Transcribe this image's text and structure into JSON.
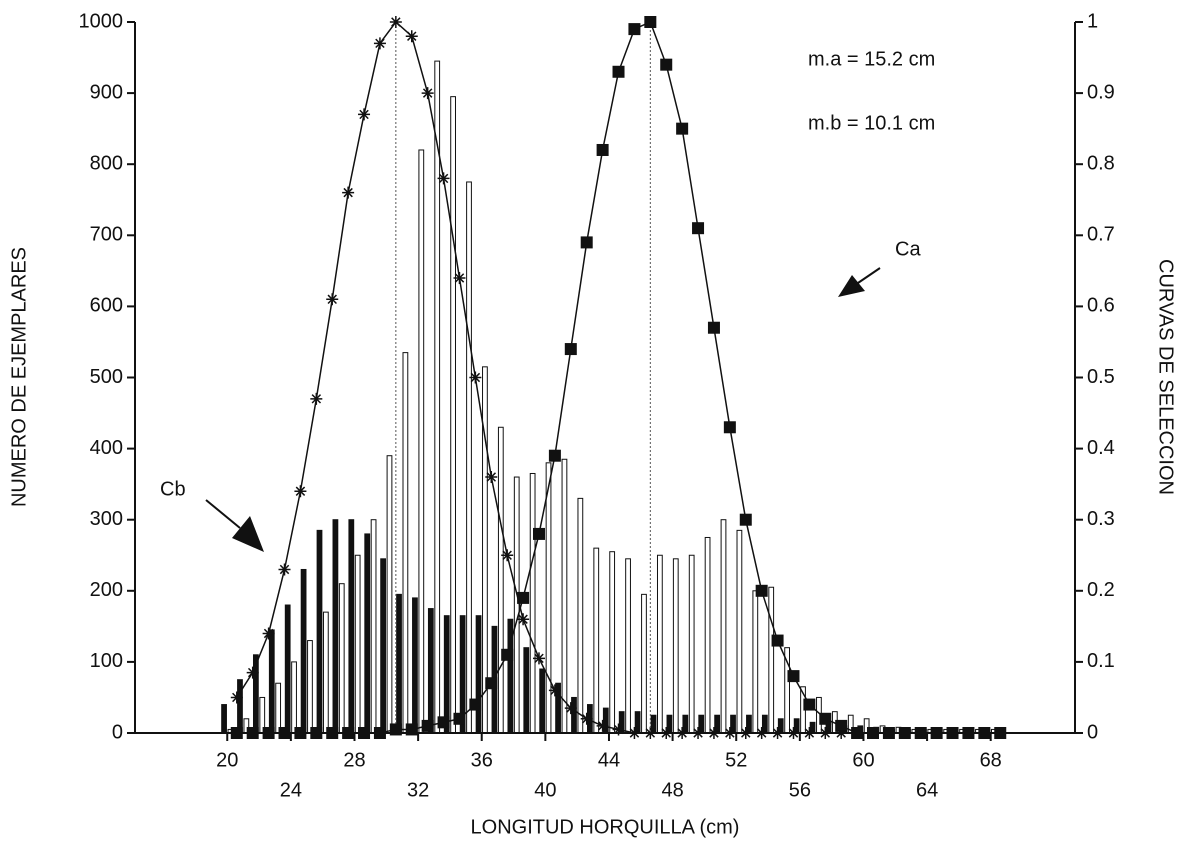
{
  "chart_data": {
    "type": "bar-line",
    "xlabel": "LONGITUD HORQUILLA (cm)",
    "ylabel": "NUMERO DE EJEMPLARES",
    "y2label": "CURVAS DE SELECCION",
    "xlim": [
      14.2,
      73.3
    ],
    "xticks": [
      20,
      24,
      28,
      32,
      36,
      40,
      44,
      48,
      52,
      56,
      60,
      64,
      68
    ],
    "ylim": [
      0,
      1000
    ],
    "yticks": [
      0,
      100,
      200,
      300,
      400,
      500,
      600,
      700,
      800,
      900,
      1000
    ],
    "y2lim": [
      0,
      1
    ],
    "y2ticks": [
      0,
      0.1,
      0.2,
      0.3,
      0.4,
      0.5,
      0.6,
      0.7,
      0.8,
      0.9,
      1
    ],
    "annotations": [
      "m.a = 15.2 cm",
      "m.b = 10.1 cm",
      "Ca",
      "Cb"
    ],
    "series": [
      {
        "type": "bar",
        "color": "#111111",
        "x": [
          20,
          21,
          22,
          23,
          24,
          25,
          26,
          27,
          28,
          29,
          30,
          31,
          32,
          33,
          34,
          35,
          36,
          37,
          38,
          39,
          40,
          41,
          42,
          43,
          44,
          45,
          46,
          47,
          48,
          49,
          50,
          51,
          52,
          53,
          54,
          55,
          56,
          57,
          58,
          59,
          60,
          61,
          62,
          63,
          64,
          65,
          66,
          67,
          68
        ],
        "values": [
          40,
          75,
          110,
          145,
          180,
          230,
          285,
          300,
          300,
          280,
          245,
          195,
          190,
          175,
          165,
          165,
          165,
          150,
          160,
          120,
          90,
          70,
          50,
          40,
          35,
          30,
          30,
          25,
          25,
          25,
          25,
          25,
          25,
          25,
          25,
          20,
          20,
          15,
          15,
          10,
          10,
          8,
          5,
          5,
          5,
          5,
          5,
          5,
          5
        ]
      },
      {
        "type": "bar",
        "color": "#ffffff",
        "x": [
          20,
          21,
          22,
          23,
          24,
          25,
          26,
          27,
          28,
          29,
          30,
          31,
          32,
          33,
          34,
          35,
          36,
          37,
          38,
          39,
          40,
          41,
          42,
          43,
          44,
          45,
          46,
          47,
          48,
          49,
          50,
          51,
          52,
          53,
          54,
          55,
          56,
          57,
          58,
          59,
          60,
          61,
          62,
          63,
          64,
          65,
          66,
          67,
          68
        ],
        "values": [
          5,
          20,
          50,
          70,
          100,
          130,
          170,
          210,
          250,
          300,
          390,
          535,
          820,
          945,
          895,
          775,
          515,
          430,
          360,
          365,
          380,
          385,
          330,
          260,
          255,
          245,
          195,
          250,
          245,
          250,
          275,
          300,
          285,
          200,
          205,
          120,
          65,
          50,
          30,
          25,
          20,
          10,
          8,
          5,
          5,
          5,
          5,
          5,
          5
        ]
      },
      {
        "type": "line",
        "marker": "asterisk",
        "axis": "y2",
        "color": "#111111",
        "x": [
          20.6,
          21.6,
          22.6,
          23.6,
          24.6,
          25.6,
          26.6,
          27.6,
          28.6,
          29.6,
          30.6,
          31.6,
          32.6,
          33.6,
          34.6,
          35.6,
          36.6,
          37.6,
          38.6,
          39.6,
          40.6,
          41.6,
          42.6,
          43.6,
          44.6,
          45.6,
          46.6,
          47.6,
          48.6,
          49.6,
          50.6,
          51.6,
          52.6,
          53.6,
          54.6,
          55.6,
          56.6,
          57.6,
          58.6,
          59.6,
          60.6,
          61.6,
          62.6,
          63.6,
          64.6,
          65.6,
          66.6,
          67.6,
          68.6
        ],
        "values": [
          0.05,
          0.085,
          0.14,
          0.23,
          0.34,
          0.47,
          0.61,
          0.76,
          0.87,
          0.97,
          1,
          0.98,
          0.9,
          0.78,
          0.64,
          0.5,
          0.36,
          0.25,
          0.16,
          0.105,
          0.06,
          0.035,
          0.02,
          0.01,
          0.005,
          0,
          0,
          0,
          0,
          0,
          0,
          0,
          0,
          0,
          0,
          0,
          0,
          0,
          0,
          0,
          0,
          0,
          0,
          0,
          0,
          0,
          0,
          0,
          0
        ]
      },
      {
        "type": "line",
        "marker": "square",
        "axis": "y2",
        "color": "#111111",
        "x": [
          20.6,
          21.6,
          22.6,
          23.6,
          24.6,
          25.6,
          26.6,
          27.6,
          28.6,
          29.6,
          30.6,
          31.6,
          32.6,
          33.6,
          34.6,
          35.6,
          36.6,
          37.6,
          38.6,
          39.6,
          40.6,
          41.6,
          42.6,
          43.6,
          44.6,
          45.6,
          46.6,
          47.6,
          48.6,
          49.6,
          50.6,
          51.6,
          52.6,
          53.6,
          54.6,
          55.6,
          56.6,
          57.6,
          58.6,
          59.6,
          60.6,
          61.6,
          62.6,
          63.6,
          64.6,
          65.6,
          66.6,
          67.6,
          68.6
        ],
        "values": [
          0,
          0,
          0,
          0,
          0,
          0,
          0,
          0,
          0,
          0,
          0.005,
          0.005,
          0.01,
          0.015,
          0.02,
          0.04,
          0.07,
          0.11,
          0.19,
          0.28,
          0.39,
          0.54,
          0.69,
          0.82,
          0.93,
          0.99,
          1,
          0.94,
          0.85,
          0.71,
          0.57,
          0.43,
          0.3,
          0.2,
          0.13,
          0.08,
          0.04,
          0.02,
          0.01,
          0,
          0,
          0,
          0,
          0,
          0,
          0,
          0,
          0,
          0
        ]
      }
    ]
  }
}
